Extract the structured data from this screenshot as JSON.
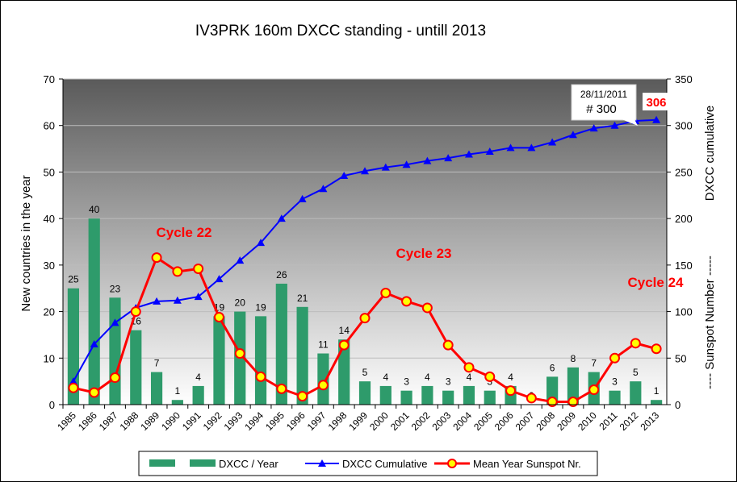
{
  "chart_data": {
    "type": "bar",
    "title": "IV3PRK 160m DXCC standing - untill 2013",
    "ylabel_left": "New countries in the year",
    "ylabel_right": "DXCC cumulative",
    "ylabel_right2": "----  Sunspot Number  -----",
    "ylim_left": [
      0,
      70
    ],
    "ylim_right": [
      0,
      350
    ],
    "yticks_left": [
      "0",
      "10",
      "20",
      "30",
      "40",
      "50",
      "60",
      "70"
    ],
    "yticks_right": [
      "0",
      "50",
      "100",
      "150",
      "200",
      "250",
      "300",
      "350"
    ],
    "categories": [
      "1985",
      "1986",
      "1987",
      "1988",
      "1989",
      "1990",
      "1991",
      "1992",
      "1993",
      "1994",
      "1995",
      "1996",
      "1997",
      "1998",
      "1999",
      "2000",
      "2001",
      "2002",
      "2003",
      "2004",
      "2005",
      "2006",
      "2007",
      "2008",
      "2009",
      "2010",
      "2011",
      "2012",
      "2013"
    ],
    "series": [
      {
        "name": "DXCC / Year",
        "type": "bar",
        "axis": "left",
        "color": "#2e9b6b",
        "values": [
          25,
          40,
          23,
          16,
          7,
          1,
          4,
          19,
          20,
          19,
          26,
          21,
          11,
          14,
          5,
          4,
          3,
          4,
          3,
          4,
          3,
          4,
          0,
          6,
          8,
          7,
          3,
          5,
          1
        ]
      },
      {
        "name": "DXCC Cumulative",
        "type": "line",
        "axis": "right",
        "color": "#0000ff",
        "values": [
          25,
          65,
          88,
          104,
          111,
          112,
          116,
          135,
          155,
          174,
          200,
          221,
          232,
          246,
          251,
          255,
          258,
          262,
          265,
          269,
          272,
          276,
          276,
          282,
          290,
          297,
          300,
          305,
          306
        ]
      },
      {
        "name": "Mean Year Sunspot Nr.",
        "type": "line",
        "axis": "right",
        "color": "#ff0000",
        "values": [
          18,
          13,
          29,
          100,
          158,
          143,
          146,
          94,
          55,
          30,
          17,
          9,
          21,
          64,
          93,
          120,
          111,
          104,
          64,
          40,
          30,
          15,
          7,
          3,
          3,
          16,
          50,
          66,
          60
        ]
      }
    ],
    "annotations": [
      {
        "text": "Cycle 22",
        "color": "#ff0000"
      },
      {
        "text": "Cycle 23",
        "color": "#ff0000"
      },
      {
        "text": "Cycle 24",
        "color": "#ff0000"
      },
      {
        "text": "28/11/2011",
        "text2": "# 300"
      },
      {
        "text": "306",
        "color": "#ff0000"
      }
    ],
    "background": "gradient gray (dark top to light bottom)",
    "legend_position": "bottom"
  }
}
